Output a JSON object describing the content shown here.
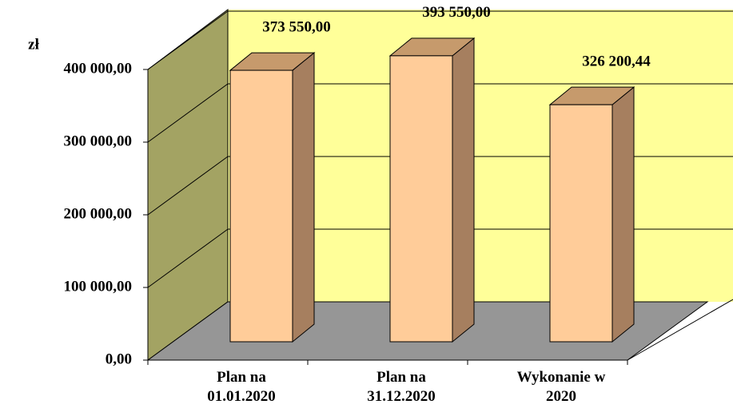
{
  "chart_data": {
    "type": "bar3d",
    "y_label": "zł",
    "categories": [
      "Plan na\n01.01.2020",
      "Plan na\n31.12.2020",
      "Wykonanie w\n2020"
    ],
    "values": [
      373550,
      393550,
      326200.44
    ],
    "value_labels": [
      "373 550,00",
      "393 550,00",
      "326 200,44"
    ],
    "ylim": [
      0,
      400000
    ],
    "yticks": [
      {
        "value": 0,
        "label": "0,00"
      },
      {
        "value": 100000,
        "label": "100 000,00"
      },
      {
        "value": 200000,
        "label": "200 000,00"
      },
      {
        "value": 300000,
        "label": "300 000,00"
      },
      {
        "value": 400000,
        "label": "400 000,00"
      }
    ],
    "grid": true,
    "color": "#ffcc99"
  }
}
